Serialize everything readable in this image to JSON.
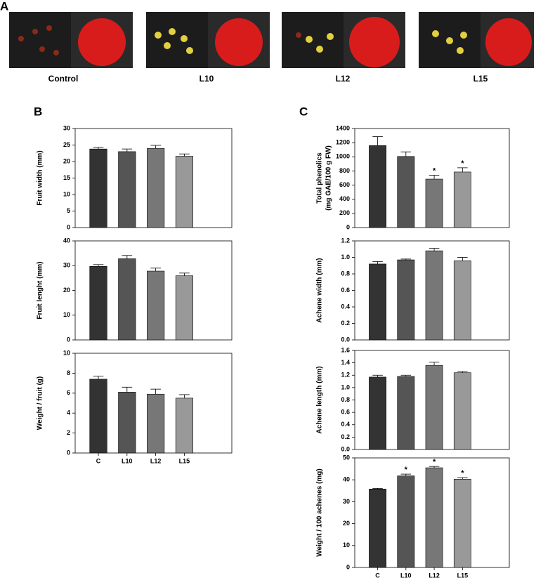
{
  "figure": {
    "panel_labels": [
      "A",
      "B",
      "C"
    ],
    "photo_captions": [
      "Control",
      "L10",
      "L12",
      "L15"
    ]
  },
  "chart_data": [
    {
      "type": "bar",
      "ylabel": [
        "Fruit width (mm)"
      ],
      "categories": [
        null,
        null,
        null,
        null
      ],
      "values": [
        23.8,
        23.0,
        24.0,
        21.6
      ],
      "errors": [
        0.5,
        0.8,
        0.9,
        0.7
      ],
      "colors": [
        "#333333",
        "#555555",
        "#777777",
        "#999999"
      ],
      "ylim": [
        0,
        30
      ],
      "yticks": [
        0,
        5,
        10,
        15,
        20,
        25,
        30
      ]
    },
    {
      "type": "bar",
      "ylabel": [
        "Fruit lenght (mm)"
      ],
      "categories": [
        null,
        null,
        null,
        null
      ],
      "values": [
        29.7,
        32.8,
        27.8,
        25.9
      ],
      "errors": [
        0.7,
        1.3,
        1.2,
        1.1
      ],
      "colors": [
        "#333333",
        "#555555",
        "#777777",
        "#999999"
      ],
      "ylim": [
        0,
        40
      ],
      "yticks": [
        0,
        10,
        20,
        30,
        40
      ]
    },
    {
      "type": "bar",
      "ylabel": [
        "Weight / fruit (g)"
      ],
      "categories": [
        "C",
        "L10",
        "L12",
        "L15"
      ],
      "values": [
        7.4,
        6.1,
        5.9,
        5.5
      ],
      "errors": [
        0.3,
        0.5,
        0.5,
        0.35
      ],
      "colors": [
        "#333333",
        "#555555",
        "#777777",
        "#999999"
      ],
      "ylim": [
        0,
        10
      ],
      "yticks": [
        0,
        2,
        4,
        6,
        8,
        10
      ]
    },
    {
      "type": "bar",
      "ylabel": [
        "Total phenolics",
        "(mg GAE/100 g FW)"
      ],
      "categories": [
        null,
        null,
        null,
        null
      ],
      "values": [
        1160,
        1005,
        685,
        785
      ],
      "errors": [
        125,
        65,
        55,
        60
      ],
      "annotations": [
        null,
        null,
        "*",
        "*"
      ],
      "colors": [
        "#333333",
        "#555555",
        "#777777",
        "#999999"
      ],
      "ylim": [
        0,
        1400
      ],
      "yticks": [
        0,
        200,
        400,
        600,
        800,
        1000,
        1200,
        1400
      ]
    },
    {
      "type": "bar",
      "ylabel": [
        "Achene width (mm)"
      ],
      "categories": [
        null,
        null,
        null,
        null
      ],
      "values": [
        0.92,
        0.97,
        1.08,
        0.96
      ],
      "errors": [
        0.03,
        0.01,
        0.03,
        0.04
      ],
      "colors": [
        "#333333",
        "#555555",
        "#777777",
        "#999999"
      ],
      "ylim": [
        0,
        1.2
      ],
      "yticks": [
        {
          "value": 0,
          "label": "0.0"
        },
        0.2,
        0.4,
        0.6,
        0.8,
        {
          "value": 1,
          "label": "1.0"
        },
        1.2
      ]
    },
    {
      "type": "bar",
      "ylabel": [
        "Achene length (mm)"
      ],
      "categories": [
        null,
        null,
        null,
        null
      ],
      "values": [
        1.17,
        1.18,
        1.36,
        1.24
      ],
      "errors": [
        0.03,
        0.02,
        0.05,
        0.02
      ],
      "colors": [
        "#333333",
        "#555555",
        "#777777",
        "#999999"
      ],
      "ylim": [
        0,
        1.6
      ],
      "yticks": [
        {
          "value": 0,
          "label": "0.0"
        },
        0.2,
        0.4,
        0.6,
        0.8,
        {
          "value": 1,
          "label": "1.0"
        },
        1.2,
        1.4,
        1.6
      ]
    },
    {
      "type": "bar",
      "ylabel": [
        "Weight / 100 achenes (mg)"
      ],
      "categories": [
        "C",
        "L10",
        "L12",
        "L15"
      ],
      "values": [
        35.8,
        41.8,
        45.5,
        40.3
      ],
      "errors": [
        0.3,
        0.8,
        0.6,
        0.7
      ],
      "annotations": [
        null,
        "*",
        "*",
        "*"
      ],
      "colors": [
        "#333333",
        "#555555",
        "#777777",
        "#999999"
      ],
      "ylim": [
        0,
        50
      ],
      "yticks": [
        0,
        10,
        20,
        30,
        40,
        50
      ]
    }
  ]
}
